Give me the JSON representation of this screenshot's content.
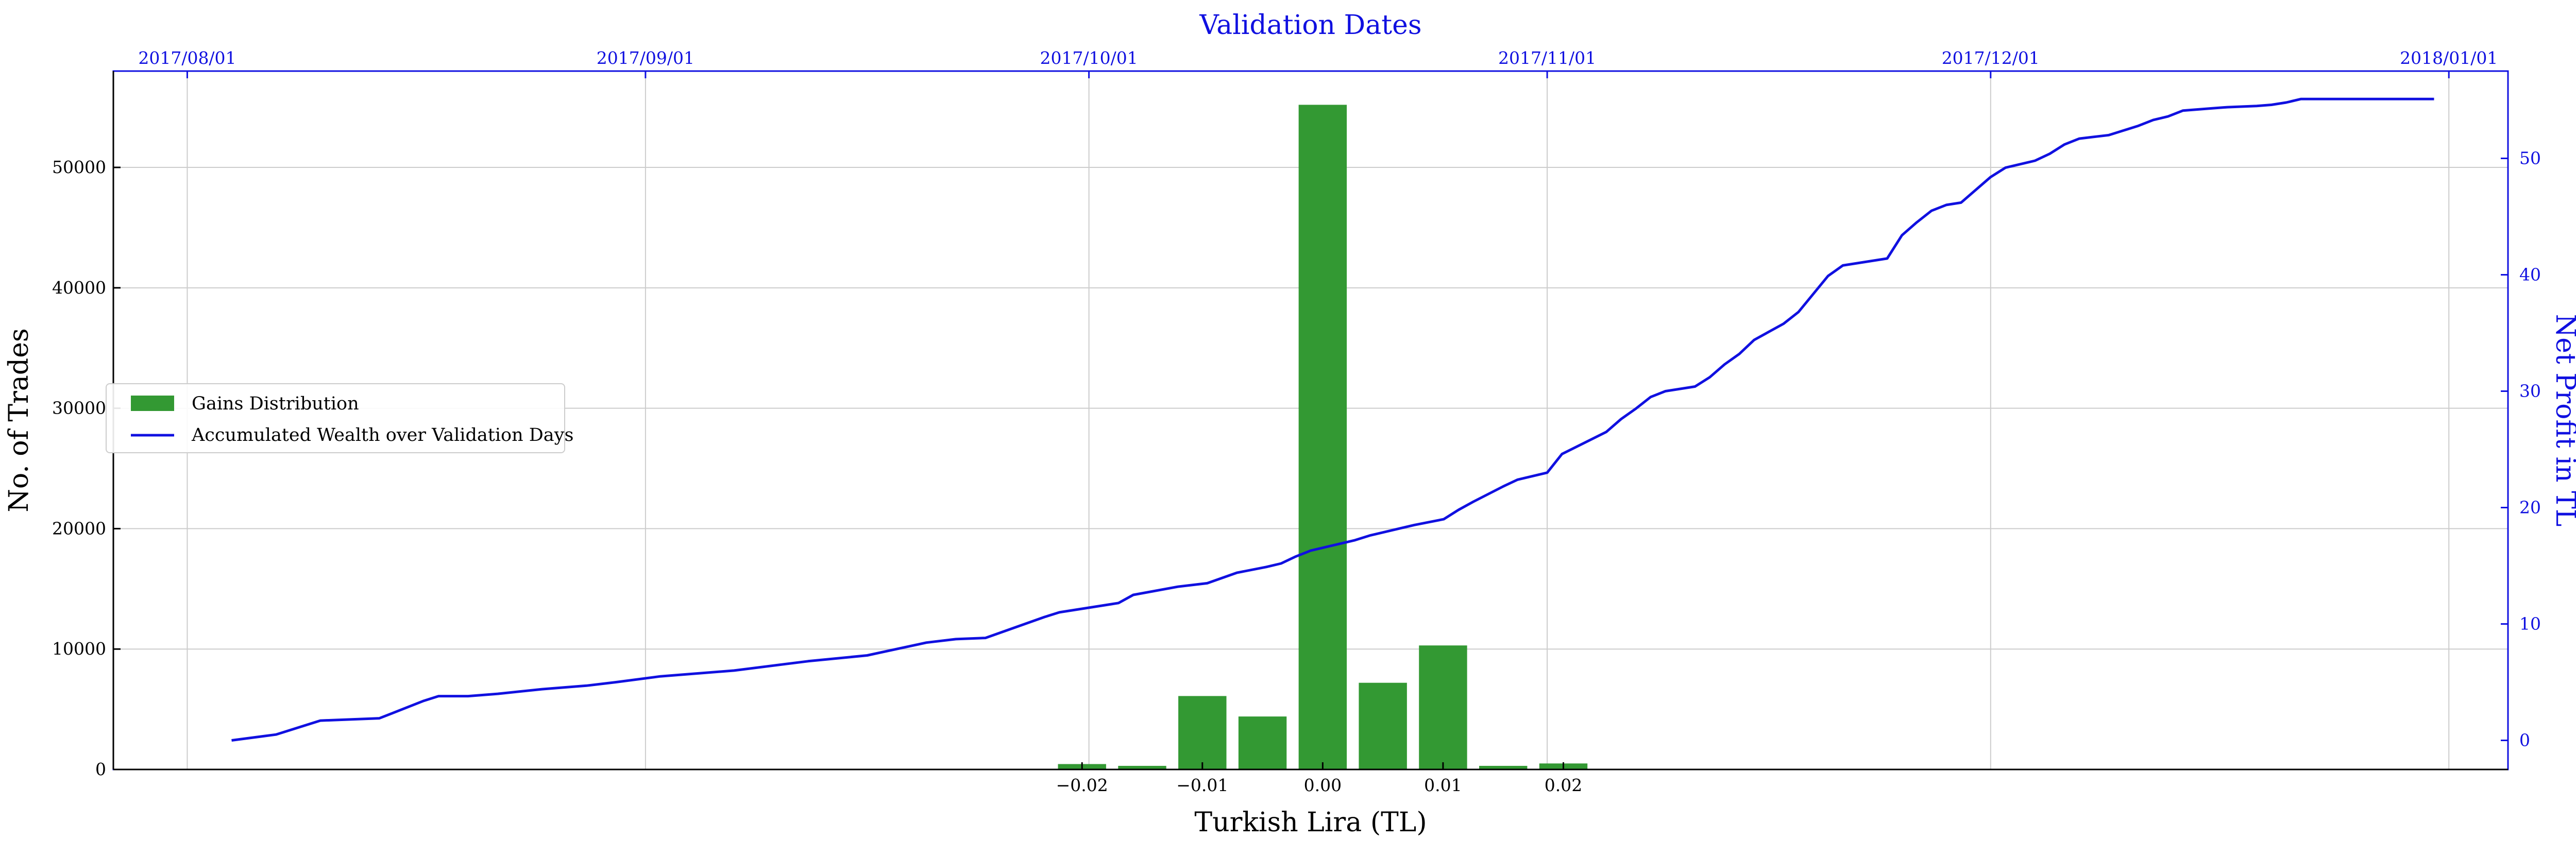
{
  "chart_data": {
    "type": "bar+line",
    "top_axis_label": "Validation Dates",
    "xlabel": "Turkish Lira (TL)",
    "ylabel_left": "No. of Trades",
    "ylabel_right": "Net Profit in TL",
    "grid": true,
    "legend_position": "center-left",
    "colors": {
      "bars": "#339933",
      "line": "#1010e0",
      "right_axis": "#1010e0"
    },
    "legend": [
      {
        "label": "Gains Distribution",
        "kind": "bar",
        "color": "#339933"
      },
      {
        "label": "Accumulated Wealth over Validation Days",
        "kind": "line",
        "color": "#1010e0"
      }
    ],
    "histogram": {
      "bin_width": 0.005,
      "centers": [
        -0.03,
        -0.025,
        -0.02,
        -0.015,
        -0.01,
        -0.005,
        0.0,
        0.005,
        0.01,
        0.015,
        0.02
      ],
      "counts": [
        50,
        30,
        450,
        300,
        6100,
        4400,
        55200,
        7200,
        10300,
        300,
        500
      ]
    },
    "left_axis": {
      "ylim": [
        0,
        58000
      ],
      "ticks": [
        0,
        10000,
        20000,
        30000,
        40000,
        50000
      ],
      "tick_labels": [
        "0",
        "10000",
        "20000",
        "30000",
        "40000",
        "50000"
      ]
    },
    "bottom_axis": {
      "xlim": [
        -0.1005,
        0.0985
      ],
      "ticks": [
        -0.02,
        -0.01,
        0.0,
        0.01,
        0.02
      ],
      "tick_labels": [
        "−0.02",
        "−0.01",
        "0.00",
        "0.01",
        "0.02"
      ]
    },
    "top_axis": {
      "xlim": [
        "2017-07-27",
        "2018-01-05"
      ],
      "ticks": [
        "2017-08-01",
        "2017-09-01",
        "2017-10-01",
        "2017-11-01",
        "2017-12-01",
        "2018-01-01"
      ],
      "tick_labels": [
        "2017/08/01",
        "2017/09/01",
        "2017/10/01",
        "2017/11/01",
        "2017/12/01",
        "2018/01/01"
      ]
    },
    "right_axis": {
      "ylim": [
        -2.5,
        57.5
      ],
      "ticks": [
        0,
        10,
        20,
        30,
        40,
        50
      ],
      "tick_labels": [
        "0",
        "10",
        "20",
        "30",
        "40",
        "50"
      ]
    },
    "wealth_series": {
      "dates": [
        "2017-08-04",
        "2017-08-07",
        "2017-08-10",
        "2017-08-14",
        "2017-08-17",
        "2017-08-18",
        "2017-08-20",
        "2017-08-22",
        "2017-08-25",
        "2017-08-28",
        "2017-08-30",
        "2017-09-02",
        "2017-09-07",
        "2017-09-12",
        "2017-09-16",
        "2017-09-20",
        "2017-09-22",
        "2017-09-24",
        "2017-09-28",
        "2017-09-29",
        "2017-10-03",
        "2017-10-04",
        "2017-10-07",
        "2017-10-09",
        "2017-10-11",
        "2017-10-13",
        "2017-10-14",
        "2017-10-15",
        "2017-10-16",
        "2017-10-18",
        "2017-10-19",
        "2017-10-20",
        "2017-10-22",
        "2017-10-23",
        "2017-10-25",
        "2017-10-26",
        "2017-10-27",
        "2017-10-29",
        "2017-10-30",
        "2017-11-01",
        "2017-11-02",
        "2017-11-05",
        "2017-11-06",
        "2017-11-07",
        "2017-11-08",
        "2017-11-09",
        "2017-11-11",
        "2017-11-12",
        "2017-11-13",
        "2017-11-14",
        "2017-11-15",
        "2017-11-16",
        "2017-11-17",
        "2017-11-18",
        "2017-11-20",
        "2017-11-21",
        "2017-11-22",
        "2017-11-24",
        "2017-11-25",
        "2017-11-26",
        "2017-11-27",
        "2017-11-28",
        "2017-11-29",
        "2017-12-01",
        "2017-12-02",
        "2017-12-04",
        "2017-12-05",
        "2017-12-06",
        "2017-12-07",
        "2017-12-09",
        "2017-12-10",
        "2017-12-11",
        "2017-12-12",
        "2017-12-13",
        "2017-12-14",
        "2017-12-16",
        "2017-12-17",
        "2017-12-19",
        "2017-12-20",
        "2017-12-21",
        "2017-12-22",
        "2017-12-23",
        "2017-12-24",
        "2017-12-26",
        "2017-12-27",
        "2017-12-29",
        "2017-12-30",
        "2017-12-31"
      ],
      "values": [
        0.0,
        0.5,
        1.7,
        1.9,
        3.4,
        3.8,
        3.8,
        4.0,
        4.4,
        4.7,
        5.0,
        5.5,
        6.0,
        6.8,
        7.3,
        8.4,
        8.7,
        8.8,
        10.6,
        11.0,
        11.8,
        12.5,
        13.2,
        13.5,
        14.4,
        14.9,
        15.2,
        15.8,
        16.3,
        16.9,
        17.2,
        17.6,
        18.2,
        18.5,
        19.0,
        19.8,
        20.5,
        21.8,
        22.4,
        23.0,
        24.6,
        26.5,
        27.6,
        28.5,
        29.5,
        30.0,
        30.4,
        31.2,
        32.3,
        33.2,
        34.4,
        35.1,
        35.8,
        36.8,
        39.9,
        40.8,
        41.0,
        41.4,
        43.4,
        44.5,
        45.5,
        46.0,
        46.2,
        48.4,
        49.2,
        49.8,
        50.4,
        51.2,
        51.7,
        52.0,
        52.4,
        52.8,
        53.3,
        53.6,
        54.1,
        54.3,
        54.4,
        54.5,
        54.6,
        54.8,
        55.1,
        55.1,
        55.1,
        55.1,
        55.1,
        55.1,
        55.1,
        55.1
      ]
    }
  }
}
